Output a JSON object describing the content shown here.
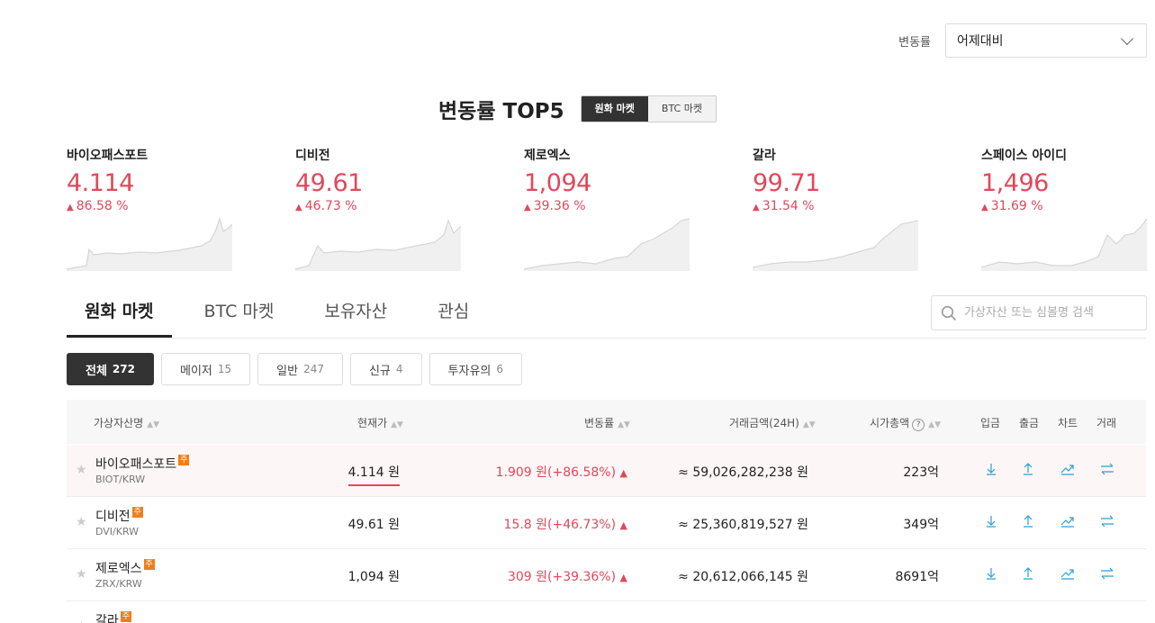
{
  "rate_select": {
    "label": "변동률",
    "value": "어제대비"
  },
  "top5": {
    "title": "변동률 TOP5",
    "segments": [
      "원화 마켓",
      "BTC 마켓"
    ],
    "cards": [
      {
        "name": "바이오패스포트",
        "price": "4.114",
        "change": "86.58 %"
      },
      {
        "name": "디비전",
        "price": "49.61",
        "change": "46.73 %"
      },
      {
        "name": "제로엑스",
        "price": "1,094",
        "change": "39.36 %"
      },
      {
        "name": "갈라",
        "price": "99.71",
        "change": "31.54 %"
      },
      {
        "name": "스페이스 아이디",
        "price": "1,496",
        "change": "31.69 %"
      }
    ]
  },
  "tabs": [
    "원화 마켓",
    "BTC 마켓",
    "보유자산",
    "관심"
  ],
  "search": {
    "placeholder": "가상자산 또는 심볼명 검색"
  },
  "filters": [
    {
      "label": "전체",
      "count": "272"
    },
    {
      "label": "메이저",
      "count": "15"
    },
    {
      "label": "일반",
      "count": "247"
    },
    {
      "label": "신규",
      "count": "4"
    },
    {
      "label": "투자유의",
      "count": "6"
    }
  ],
  "table": {
    "headers": {
      "name": "가상자산명",
      "price": "현재가",
      "change": "변동률",
      "volume": "거래금액(24H)",
      "cap": "시가총액",
      "help": "?",
      "deposit": "입금",
      "withdraw": "출금",
      "chart": "차트",
      "trade": "거래"
    },
    "badge": "주",
    "rows": [
      {
        "name": "바이오패스포트",
        "symbol": "BIOT/KRW",
        "price": "4.114 원",
        "change": "1.909 원(+86.58%)",
        "volume": "≈ 59,026,282,238 원",
        "cap": "223억"
      },
      {
        "name": "디비전",
        "symbol": "DVI/KRW",
        "price": "49.61 원",
        "change": "15.8 원(+46.73%)",
        "volume": "≈ 25,360,819,527 원",
        "cap": "349억"
      },
      {
        "name": "제로엑스",
        "symbol": "ZRX/KRW",
        "price": "1,094 원",
        "change": "309 원(+39.36%)",
        "volume": "≈ 20,612,066,145 원",
        "cap": "8691억"
      },
      {
        "name": "갈라",
        "symbol": "",
        "price": "",
        "change": "",
        "volume": "",
        "cap": ""
      }
    ]
  },
  "colors": {
    "up": "#e0485a",
    "icon": "#2a9fd6",
    "badge": "#f07e19"
  }
}
